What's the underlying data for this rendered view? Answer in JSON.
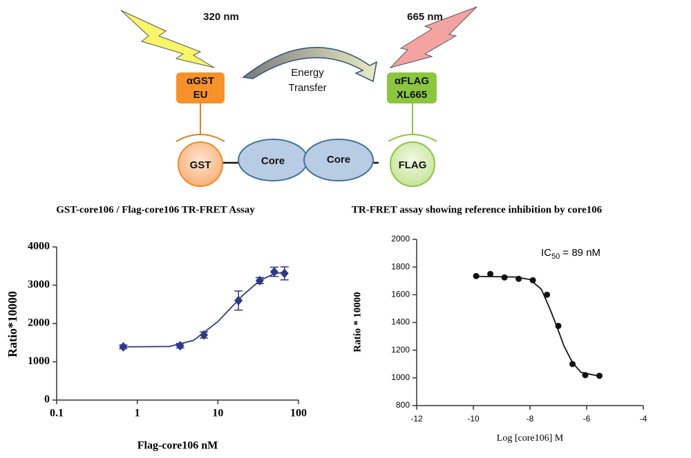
{
  "diagram": {
    "labels": {
      "excite": "320 nm",
      "emit": "665 nm",
      "donor_top": "αGST",
      "donor_bottom": "EU",
      "transfer_top": "Energy",
      "transfer_bottom": "Transfer",
      "acceptor_top": "αFLAG",
      "acceptor_bottom": "XL665",
      "gst": "GST",
      "core_left": "Core",
      "core_right": "Core",
      "flag": "FLAG"
    }
  },
  "chart_data": [
    {
      "type": "scatter",
      "title": "GST-core106 / Flag-core106 TR-FRET Assay",
      "xlabel": "Flag-core106 nM",
      "ylabel": "Ratio*10000",
      "xscale": "log",
      "xlim": [
        0.1,
        100
      ],
      "xticks": [
        0.1,
        1,
        10,
        100
      ],
      "ylim": [
        0,
        4000
      ],
      "yticks": [
        0,
        1000,
        2000,
        3000,
        4000
      ],
      "color": "#2e3a87",
      "marker": "diamond",
      "x": [
        0.67,
        3.4,
        6.7,
        18,
        33,
        50,
        67
      ],
      "values": [
        1390,
        1420,
        1700,
        2600,
        3120,
        3350,
        3310
      ],
      "errors": [
        50,
        60,
        80,
        250,
        80,
        120,
        170
      ],
      "fit": {
        "x": [
          0.67,
          2.5,
          5,
          10,
          20,
          33,
          50,
          67
        ],
        "y": [
          1390,
          1400,
          1560,
          2050,
          2720,
          3120,
          3300,
          3340
        ]
      }
    },
    {
      "type": "scatter",
      "title": "TR-FRET assay showing reference inhibition by core106",
      "xlabel": "Log [core106] M",
      "ylabel": "Ratio * 10000",
      "annotation": {
        "main": "IC",
        "sub": "50",
        "rest": " = 89 nM"
      },
      "xlim": [
        -12,
        -4
      ],
      "xticks": [
        -12,
        -10,
        -8,
        -6,
        -4
      ],
      "ylim": [
        800,
        2000
      ],
      "yticks": [
        800,
        1000,
        1200,
        1400,
        1600,
        1800,
        2000
      ],
      "color": "#111111",
      "marker": "circle",
      "x": [
        -9.9,
        -9.4,
        -8.9,
        -8.4,
        -7.9,
        -7.4,
        -7.0,
        -6.5,
        -6.05,
        -5.55
      ],
      "values": [
        1735,
        1750,
        1725,
        1715,
        1705,
        1600,
        1375,
        1100,
        1020,
        1015
      ],
      "fit": {
        "x": [
          -9.9,
          -8.5,
          -8,
          -7.6,
          -7.3,
          -7.05,
          -6.8,
          -6.5,
          -6.2,
          -5.55
        ],
        "y": [
          1733,
          1728,
          1710,
          1640,
          1500,
          1370,
          1230,
          1110,
          1040,
          1012
        ]
      }
    }
  ]
}
